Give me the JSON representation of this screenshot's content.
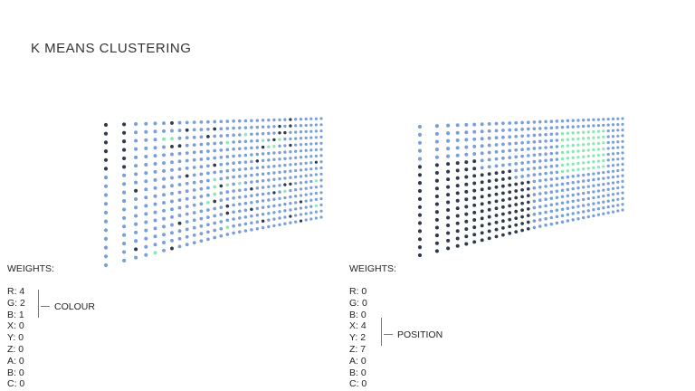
{
  "title": "K MEANS CLUSTERING",
  "colors": {
    "blue": "#7a9fd8",
    "dark": "#2f3a4d",
    "green": "#8ce8b2"
  },
  "panels": [
    {
      "weights_label": "WEIGHTS:",
      "weights": [
        "R: 4",
        "G: 2",
        "B: 1",
        "X: 0",
        "Y: 0",
        "Z: 0",
        "A: 0",
        "B: 0",
        "C: 0"
      ],
      "group_label": "COLOUR"
    },
    {
      "weights_label": "WEIGHTS:",
      "weights": [
        "R: 0",
        "G: 0",
        "B: 0",
        "X: 4",
        "Y: 2",
        "Z: 7",
        "A: 0",
        "B: 0",
        "C: 0"
      ],
      "group_label": "POSITION"
    }
  ]
}
